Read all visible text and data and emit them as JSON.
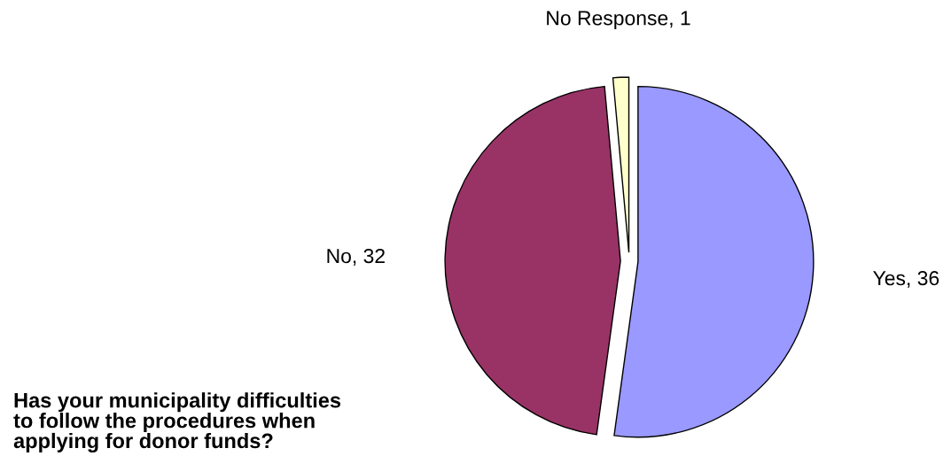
{
  "chart_data": {
    "type": "pie",
    "title": "Has your municipality difficulties to follow the procedures when applying for donor funds?",
    "categories": [
      "Yes",
      "No",
      "No Response"
    ],
    "values": [
      36,
      32,
      1
    ],
    "colors": [
      "#9999ff",
      "#993366",
      "#ffffcc"
    ],
    "value_labels": [
      ", 36",
      ", 32",
      ", 1"
    ]
  }
}
